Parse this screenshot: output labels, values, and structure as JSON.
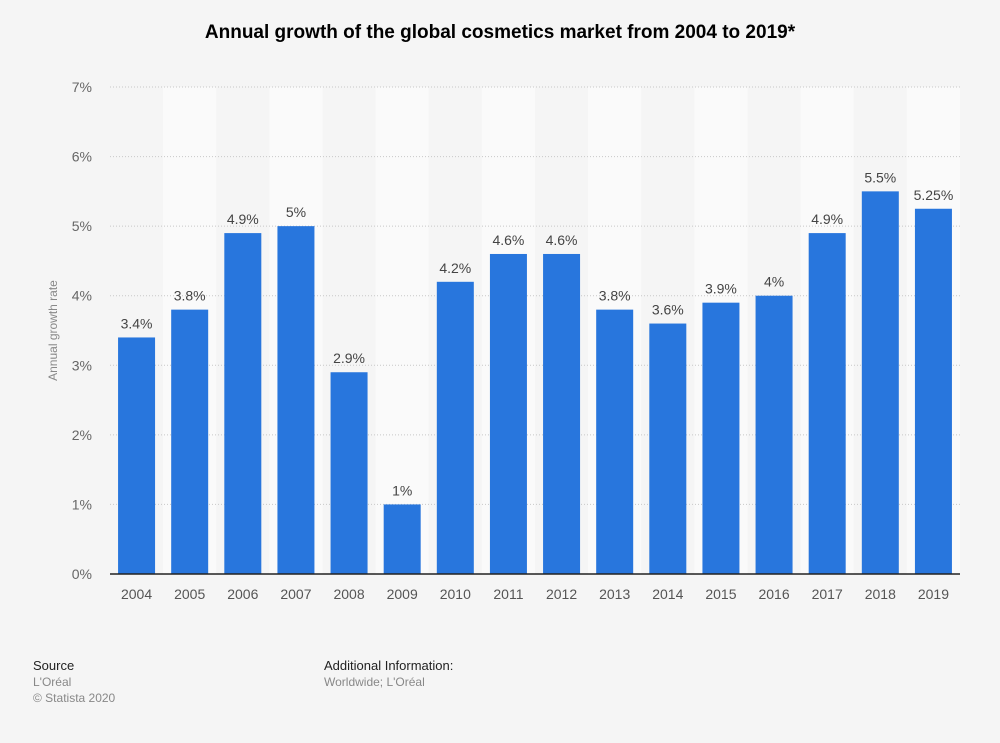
{
  "chart_data": {
    "type": "bar",
    "title": "Annual growth of the global cosmetics market from 2004 to 2019*",
    "xlabel": "",
    "ylabel": "Annual growth rate",
    "categories": [
      "2004",
      "2005",
      "2006",
      "2007",
      "2008",
      "2009",
      "2010",
      "2011",
      "2012",
      "2013",
      "2014",
      "2015",
      "2016",
      "2017",
      "2018",
      "2019"
    ],
    "values": [
      3.4,
      3.8,
      4.9,
      5,
      2.9,
      1,
      4.2,
      4.6,
      4.6,
      3.8,
      3.6,
      3.9,
      4,
      4.9,
      5.5,
      5.25
    ],
    "data_labels": [
      "3.4%",
      "3.8%",
      "4.9%",
      "5%",
      "2.9%",
      "1%",
      "4.2%",
      "4.6%",
      "4.6%",
      "3.8%",
      "3.6%",
      "3.9%",
      "4%",
      "4.9%",
      "5.5%",
      "5.25%"
    ],
    "ylim": [
      0,
      7
    ],
    "yticks": [
      "0%",
      "1%",
      "2%",
      "3%",
      "4%",
      "5%",
      "6%",
      "7%"
    ],
    "grid": true,
    "bar_color": "#2876dd"
  },
  "footer": {
    "source_heading": "Source",
    "source": "L'Oréal",
    "copyright": "© Statista 2020",
    "info_heading": "Additional Information:",
    "info": "Worldwide; L'Oréal"
  }
}
